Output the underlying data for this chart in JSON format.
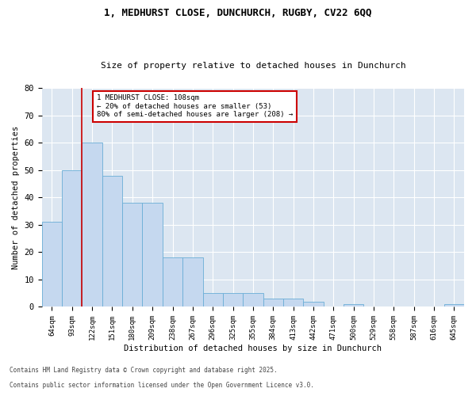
{
  "title1": "1, MEDHURST CLOSE, DUNCHURCH, RUGBY, CV22 6QQ",
  "title2": "Size of property relative to detached houses in Dunchurch",
  "xlabel": "Distribution of detached houses by size in Dunchurch",
  "ylabel": "Number of detached properties",
  "footnote1": "Contains HM Land Registry data © Crown copyright and database right 2025.",
  "footnote2": "Contains public sector information licensed under the Open Government Licence v3.0.",
  "categories": [
    "64sqm",
    "93sqm",
    "122sqm",
    "151sqm",
    "180sqm",
    "209sqm",
    "238sqm",
    "267sqm",
    "296sqm",
    "325sqm",
    "355sqm",
    "384sqm",
    "413sqm",
    "442sqm",
    "471sqm",
    "500sqm",
    "529sqm",
    "558sqm",
    "587sqm",
    "616sqm",
    "645sqm"
  ],
  "values": [
    31,
    50,
    60,
    48,
    38,
    38,
    18,
    18,
    5,
    5,
    5,
    3,
    3,
    2,
    0,
    1,
    0,
    0,
    0,
    0,
    1
  ],
  "bar_color": "#c5d8ef",
  "bar_edge_color": "#6aaed6",
  "plot_bg_color": "#dce6f1",
  "fig_bg_color": "#ffffff",
  "grid_color": "#ffffff",
  "annotation_text": "1 MEDHURST CLOSE: 108sqm\n← 20% of detached houses are smaller (53)\n80% of semi-detached houses are larger (208) →",
  "annotation_box_color": "#ffffff",
  "annotation_border_color": "#cc0000",
  "red_line_x": 1.5,
  "ylim": [
    0,
    80
  ],
  "yticks": [
    0,
    10,
    20,
    30,
    40,
    50,
    60,
    70,
    80
  ]
}
